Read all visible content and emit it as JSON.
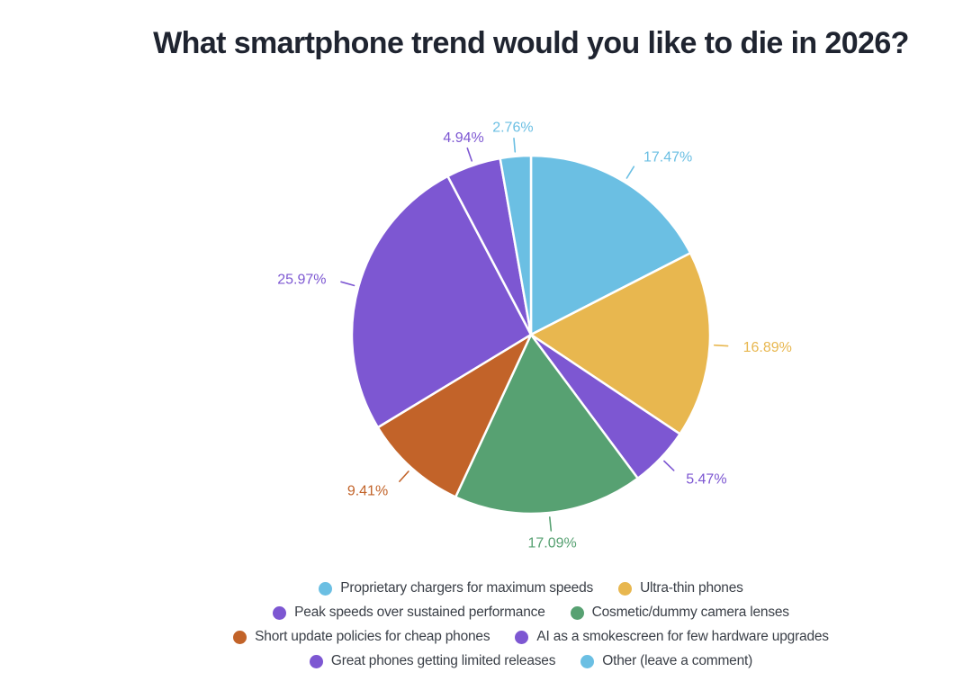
{
  "title": "What smartphone trend would you like to die in 2026?",
  "style": {
    "background": "#ffffff",
    "title_color": "#1f2430",
    "legend_text_color": "#3a3f47",
    "slice_border_color": "#ffffff"
  },
  "chart_data": {
    "type": "pie",
    "title": "What smartphone trend would you like to die in 2026?",
    "labels": [
      "Proprietary chargers for maximum speeds",
      "Ultra-thin phones",
      "Peak speeds over sustained performance",
      "Cosmetic/dummy camera lenses",
      "Short update policies for cheap phones",
      "AI as a smokescreen for few hardware upgrades",
      "Great phones getting limited releases",
      "Other (leave a comment)"
    ],
    "values": [
      17.47,
      16.89,
      5.47,
      17.09,
      9.41,
      25.97,
      4.94,
      2.76
    ],
    "slice_labels": [
      "17.47%",
      "16.89%",
      "5.47%",
      "17.09%",
      "9.41%",
      "25.97%",
      "4.94%",
      "2.76%"
    ],
    "colors": [
      "#6bbfe3",
      "#e8b74f",
      "#7d57d2",
      "#57a172",
      "#c26329",
      "#7d57d2",
      "#7d57d2",
      "#6bbfe3"
    ],
    "direction": "clockwise",
    "start_angle_deg": 0,
    "legend_position": "bottom",
    "labels_outside": true
  }
}
